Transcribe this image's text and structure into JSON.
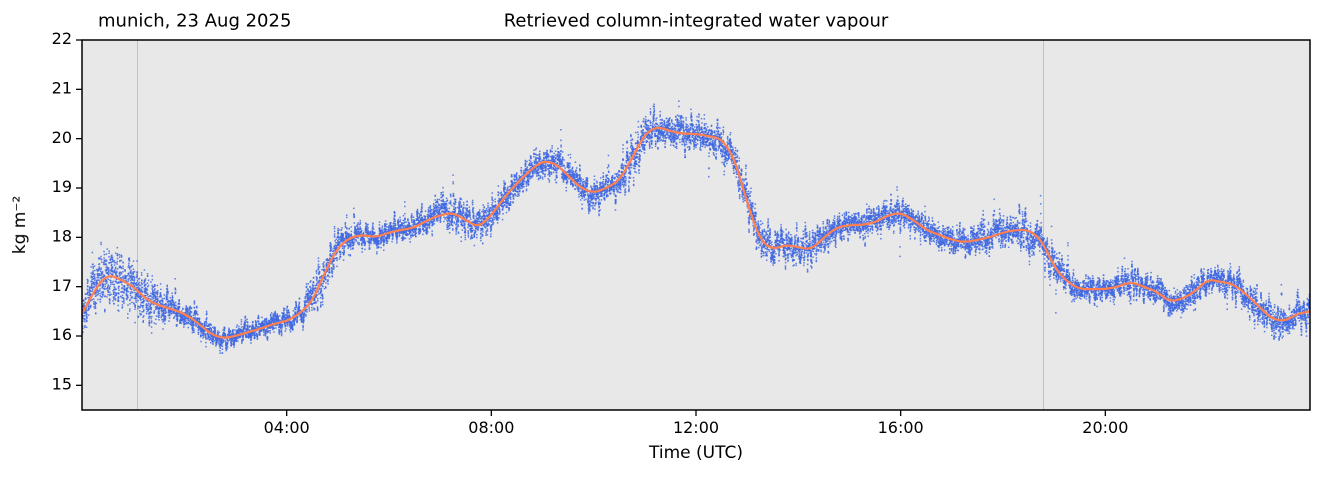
{
  "chart_data": {
    "type": "scatter",
    "title": "Retrieved column-integrated water vapour",
    "annotation": "munich, 23 Aug 2025",
    "xlabel": "Time (UTC)",
    "ylabel": "kg m⁻²",
    "xlim_hours": [
      0,
      24
    ],
    "ylim": [
      14.5,
      22
    ],
    "y_ticks": [
      15,
      16,
      17,
      18,
      19,
      20,
      21,
      22
    ],
    "x_ticks": [
      {
        "hour": 4,
        "label": "04:00"
      },
      {
        "hour": 8,
        "label": "08:00"
      },
      {
        "hour": 12,
        "label": "12:00"
      },
      {
        "hour": 16,
        "label": "16:00"
      },
      {
        "hour": 20,
        "label": "20:00"
      }
    ],
    "vlines_hours": [
      1.07,
      18.78
    ],
    "colors": {
      "plot_background": "#e8e8e8",
      "scatter": "#4169e1",
      "smoothed_line": "#ff7f50",
      "vline": "#c2c2c2",
      "spine": "#000000"
    },
    "grid": "off",
    "legend": "none",
    "series": [
      {
        "name": "raw retrievals",
        "type": "scatter",
        "color": "#4169e1",
        "marker_size": 1.5
      },
      {
        "name": "smoothed",
        "type": "line",
        "color": "#ff7f50",
        "width": 2.2
      }
    ],
    "smoothed": {
      "t_start_hours": 0,
      "t_step_hours": 0.25,
      "values": [
        16.45,
        16.95,
        17.25,
        17.15,
        17.0,
        16.75,
        16.62,
        16.55,
        16.45,
        16.28,
        16.05,
        15.95,
        16.0,
        16.08,
        16.15,
        16.25,
        16.3,
        16.45,
        16.7,
        17.3,
        17.8,
        18.0,
        18.05,
        18.0,
        18.1,
        18.15,
        18.2,
        18.35,
        18.45,
        18.5,
        18.35,
        18.2,
        18.45,
        18.8,
        19.1,
        19.35,
        19.55,
        19.5,
        19.25,
        19.0,
        18.9,
        19.0,
        19.15,
        19.6,
        20.1,
        20.25,
        20.15,
        20.1,
        20.1,
        20.05,
        20.0,
        19.6,
        18.7,
        17.95,
        17.75,
        17.85,
        17.8,
        17.75,
        18.0,
        18.2,
        18.25,
        18.25,
        18.3,
        18.45,
        18.5,
        18.35,
        18.15,
        18.05,
        17.95,
        17.9,
        17.95,
        18.0,
        18.1,
        18.15,
        18.15,
        17.95,
        17.4,
        17.1,
        16.95,
        16.95,
        16.95,
        17.0,
        17.1,
        17.0,
        16.9,
        16.7,
        16.75,
        16.9,
        17.15,
        17.1,
        17.05,
        16.85,
        16.6,
        16.35,
        16.3,
        16.45,
        16.5
      ]
    },
    "scatter_spread": [
      0.3,
      0.45,
      0.55,
      0.5,
      0.5,
      0.45,
      0.35,
      0.25,
      0.22,
      0.2,
      0.18,
      0.18,
      0.18,
      0.18,
      0.18,
      0.18,
      0.18,
      0.22,
      0.3,
      0.4,
      0.3,
      0.25,
      0.22,
      0.22,
      0.22,
      0.22,
      0.25,
      0.25,
      0.3,
      0.35,
      0.3,
      0.3,
      0.3,
      0.28,
      0.25,
      0.25,
      0.25,
      0.25,
      0.28,
      0.3,
      0.28,
      0.25,
      0.3,
      0.35,
      0.35,
      0.3,
      0.3,
      0.35,
      0.3,
      0.3,
      0.35,
      0.35,
      0.35,
      0.35,
      0.3,
      0.3,
      0.3,
      0.3,
      0.25,
      0.25,
      0.25,
      0.25,
      0.25,
      0.28,
      0.28,
      0.25,
      0.25,
      0.25,
      0.25,
      0.25,
      0.28,
      0.28,
      0.3,
      0.3,
      0.35,
      0.3,
      0.3,
      0.25,
      0.22,
      0.22,
      0.22,
      0.22,
      0.25,
      0.22,
      0.25,
      0.25,
      0.25,
      0.28,
      0.25,
      0.25,
      0.25,
      0.28,
      0.28,
      0.3,
      0.3,
      0.28,
      0.3
    ]
  }
}
